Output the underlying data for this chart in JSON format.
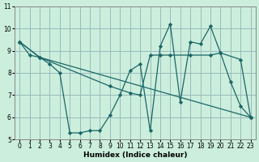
{
  "xlabel": "Humidex (Indice chaleur)",
  "background_color": "#cceedd",
  "grid_color": "#99bbbb",
  "line_color": "#1a6666",
  "xlim": [
    -0.5,
    23.5
  ],
  "ylim": [
    5,
    11
  ],
  "yticks": [
    5,
    6,
    7,
    8,
    9,
    10,
    11
  ],
  "xticks": [
    0,
    1,
    2,
    3,
    4,
    5,
    6,
    7,
    8,
    9,
    10,
    11,
    12,
    13,
    14,
    15,
    16,
    17,
    18,
    19,
    20,
    21,
    22,
    23
  ],
  "series": [
    {
      "x": [
        0,
        1,
        2,
        3,
        4,
        5,
        6,
        7,
        8,
        9,
        10,
        11,
        12,
        13,
        14,
        15,
        16,
        17,
        18,
        19,
        20,
        21,
        22,
        23
      ],
      "y": [
        9.4,
        8.8,
        8.7,
        8.4,
        8.0,
        5.3,
        5.3,
        5.4,
        5.4,
        6.1,
        7.0,
        8.1,
        8.4,
        5.4,
        9.2,
        10.2,
        6.7,
        9.4,
        9.3,
        10.1,
        8.9,
        7.6,
        6.5,
        6.0
      ]
    },
    {
      "x": [
        0,
        2,
        23
      ],
      "y": [
        9.4,
        8.7,
        6.0
      ]
    },
    {
      "x": [
        0,
        2,
        9,
        11,
        12,
        13,
        14,
        15,
        17,
        19,
        20,
        22,
        23
      ],
      "y": [
        9.4,
        8.7,
        7.4,
        7.1,
        7.0,
        8.8,
        8.8,
        8.8,
        8.8,
        8.8,
        8.9,
        8.6,
        6.0
      ]
    }
  ],
  "tick_fontsize": 5.5,
  "xlabel_fontsize": 6.5
}
